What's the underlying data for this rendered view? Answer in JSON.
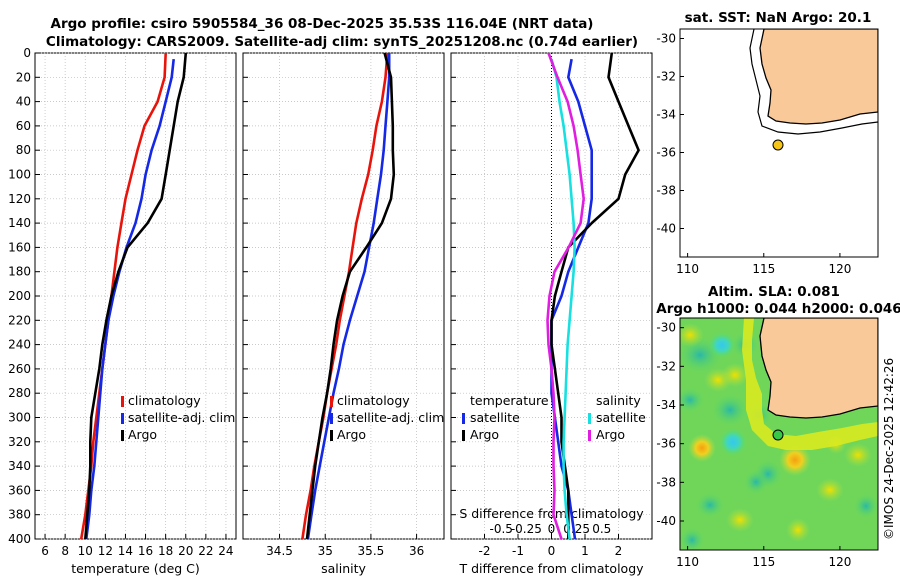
{
  "title": {
    "line1": "Argo profile: csiro 5905584_36 08-Dec-2025 35.53S 116.04E (NRT data)",
    "line2": "Climatology: CARS2009. Satellite-adj clim: synTS_20251208.nc (0.74d earlier)"
  },
  "sst_map": {
    "title": "sat. SST: NaN Argo: 20.1"
  },
  "sla_map": {
    "title_line1": "Altim. SLA: 0.081",
    "title_line2": "Argo h1000: 0.044 h2000: 0.046"
  },
  "stamp": "©IMOS 24-Dec-2025 12:42:26",
  "colors": {
    "climatology": "#e8140c",
    "satellite": "#1428e6",
    "argo": "#000000",
    "s_satellite": "#18e0e0",
    "s_climatology": "#e01ee0",
    "land": "#f9c99a"
  },
  "chart_data": [
    {
      "type": "line",
      "id": "temperature",
      "xlabel": "temperature (deg C)",
      "ylabel": "",
      "xlim": [
        5,
        25
      ],
      "ylim": [
        400,
        0
      ],
      "xticks": [
        "6",
        "8",
        "10",
        "12",
        "14",
        "16",
        "18",
        "20",
        "22",
        "24"
      ],
      "yticks": [
        "0",
        "20",
        "40",
        "60",
        "80",
        "100",
        "120",
        "140",
        "160",
        "180",
        "200",
        "220",
        "240",
        "260",
        "280",
        "300",
        "320",
        "340",
        "360",
        "380",
        "400"
      ],
      "legend": [
        "climatology",
        "satellite-adj. clim",
        "Argo"
      ],
      "series": [
        {
          "name": "climatology",
          "color": "#e8140c",
          "points": [
            [
              18.0,
              0
            ],
            [
              17.9,
              20
            ],
            [
              17.2,
              40
            ],
            [
              15.9,
              60
            ],
            [
              15.2,
              80
            ],
            [
              14.6,
              100
            ],
            [
              14.0,
              120
            ],
            [
              13.6,
              140
            ],
            [
              13.2,
              160
            ],
            [
              12.9,
              180
            ],
            [
              12.6,
              200
            ],
            [
              12.3,
              220
            ],
            [
              12.0,
              240
            ],
            [
              11.7,
              260
            ],
            [
              11.4,
              280
            ],
            [
              11.1,
              300
            ],
            [
              10.8,
              320
            ],
            [
              10.6,
              340
            ],
            [
              10.3,
              360
            ],
            [
              10.0,
              380
            ],
            [
              9.6,
              400
            ]
          ]
        },
        {
          "name": "satellite-adj. clim",
          "color": "#1428e6",
          "points": [
            [
              18.8,
              5
            ],
            [
              18.6,
              20
            ],
            [
              18.0,
              40
            ],
            [
              17.4,
              60
            ],
            [
              16.6,
              80
            ],
            [
              16.0,
              100
            ],
            [
              15.6,
              120
            ],
            [
              15.0,
              140
            ],
            [
              14.1,
              160
            ],
            [
              13.4,
              180
            ],
            [
              12.8,
              200
            ],
            [
              12.3,
              220
            ],
            [
              12.0,
              240
            ],
            [
              11.7,
              260
            ],
            [
              11.5,
              280
            ],
            [
              11.3,
              300
            ],
            [
              11.1,
              320
            ],
            [
              10.9,
              340
            ],
            [
              10.6,
              360
            ],
            [
              10.4,
              380
            ],
            [
              10.1,
              400
            ]
          ]
        },
        {
          "name": "Argo",
          "color": "#000000",
          "points": [
            [
              20.0,
              0
            ],
            [
              19.8,
              20
            ],
            [
              19.2,
              40
            ],
            [
              18.8,
              60
            ],
            [
              18.4,
              80
            ],
            [
              18.0,
              100
            ],
            [
              17.6,
              120
            ],
            [
              16.2,
              140
            ],
            [
              14.2,
              160
            ],
            [
              13.3,
              180
            ],
            [
              12.6,
              200
            ],
            [
              12.1,
              220
            ],
            [
              11.7,
              240
            ],
            [
              11.4,
              260
            ],
            [
              11.0,
              280
            ],
            [
              10.6,
              300
            ],
            [
              10.5,
              320
            ],
            [
              10.5,
              340
            ],
            [
              10.4,
              360
            ],
            [
              10.2,
              380
            ],
            [
              10.0,
              400
            ]
          ]
        }
      ]
    },
    {
      "type": "line",
      "id": "salinity",
      "xlabel": "salinity",
      "ylabel": "",
      "xlim": [
        34.1,
        36.3
      ],
      "ylim": [
        400,
        0
      ],
      "xticks": [
        "34.5",
        "35",
        "35.5",
        "36"
      ],
      "legend": [
        "climatology",
        "satellite-adj. clim",
        "Argo"
      ],
      "series": [
        {
          "name": "climatology",
          "color": "#e8140c",
          "points": [
            [
              35.68,
              0
            ],
            [
              35.66,
              20
            ],
            [
              35.62,
              40
            ],
            [
              35.56,
              60
            ],
            [
              35.52,
              80
            ],
            [
              35.47,
              100
            ],
            [
              35.4,
              120
            ],
            [
              35.34,
              140
            ],
            [
              35.3,
              160
            ],
            [
              35.26,
              180
            ],
            [
              35.21,
              200
            ],
            [
              35.16,
              220
            ],
            [
              35.12,
              240
            ],
            [
              35.07,
              260
            ],
            [
              35.02,
              280
            ],
            [
              34.98,
              300
            ],
            [
              34.93,
              320
            ],
            [
              34.88,
              340
            ],
            [
              34.84,
              360
            ],
            [
              34.79,
              380
            ],
            [
              34.75,
              400
            ]
          ]
        },
        {
          "name": "satellite-adj. clim",
          "color": "#1428e6",
          "points": [
            [
              35.7,
              0
            ],
            [
              35.7,
              20
            ],
            [
              35.68,
              40
            ],
            [
              35.66,
              60
            ],
            [
              35.64,
              80
            ],
            [
              35.61,
              100
            ],
            [
              35.57,
              120
            ],
            [
              35.53,
              140
            ],
            [
              35.48,
              160
            ],
            [
              35.43,
              180
            ],
            [
              35.35,
              200
            ],
            [
              35.27,
              220
            ],
            [
              35.2,
              240
            ],
            [
              35.15,
              260
            ],
            [
              35.09,
              280
            ],
            [
              35.04,
              300
            ],
            [
              34.99,
              320
            ],
            [
              34.94,
              340
            ],
            [
              34.89,
              360
            ],
            [
              34.85,
              380
            ],
            [
              34.81,
              400
            ]
          ]
        },
        {
          "name": "Argo",
          "color": "#000000",
          "points": [
            [
              35.65,
              0
            ],
            [
              35.72,
              20
            ],
            [
              35.73,
              40
            ],
            [
              35.74,
              60
            ],
            [
              35.74,
              80
            ],
            [
              35.75,
              100
            ],
            [
              35.72,
              120
            ],
            [
              35.62,
              140
            ],
            [
              35.45,
              160
            ],
            [
              35.27,
              180
            ],
            [
              35.19,
              200
            ],
            [
              35.13,
              220
            ],
            [
              35.09,
              240
            ],
            [
              35.06,
              260
            ],
            [
              35.02,
              280
            ],
            [
              34.97,
              300
            ],
            [
              34.93,
              320
            ],
            [
              34.89,
              340
            ],
            [
              34.86,
              360
            ],
            [
              34.83,
              380
            ],
            [
              34.8,
              400
            ]
          ]
        }
      ]
    },
    {
      "type": "line",
      "id": "differences",
      "xlabel": "T difference from climatology",
      "x2label": "S difference from climatology",
      "xlim": [
        -3,
        3
      ],
      "x2lim": [
        -1,
        1
      ],
      "ylim": [
        400,
        0
      ],
      "xticks": [
        "-2",
        "-1",
        "0",
        "1",
        "2"
      ],
      "x2ticks": [
        "-0.5",
        "-0.25",
        "0",
        "0.25",
        "0.5"
      ],
      "legend_left_title": "temperature",
      "legend_right_title": "salinity",
      "legend_left": [
        "satellite",
        "Argo"
      ],
      "legend_right": [
        "satellite",
        "Argo"
      ],
      "series": [
        {
          "name": "T satellite",
          "color": "#1428e6",
          "axis": "T",
          "points": [
            [
              0.6,
              5
            ],
            [
              0.5,
              20
            ],
            [
              0.8,
              40
            ],
            [
              1.0,
              60
            ],
            [
              1.2,
              80
            ],
            [
              1.2,
              100
            ],
            [
              1.2,
              120
            ],
            [
              1.1,
              140
            ],
            [
              0.8,
              160
            ],
            [
              0.5,
              180
            ],
            [
              0.3,
              200
            ],
            [
              0.0,
              220
            ],
            [
              0.0,
              240
            ],
            [
              0.0,
              260
            ],
            [
              0.0,
              280
            ],
            [
              0.1,
              300
            ],
            [
              0.2,
              320
            ],
            [
              0.3,
              340
            ],
            [
              0.5,
              360
            ],
            [
              0.6,
              380
            ],
            [
              0.7,
              400
            ]
          ]
        },
        {
          "name": "T Argo",
          "color": "#000000",
          "axis": "T",
          "points": [
            [
              1.8,
              0
            ],
            [
              1.7,
              20
            ],
            [
              2.0,
              40
            ],
            [
              2.3,
              60
            ],
            [
              2.6,
              80
            ],
            [
              2.2,
              100
            ],
            [
              2.0,
              120
            ],
            [
              1.2,
              140
            ],
            [
              0.5,
              160
            ],
            [
              0.3,
              180
            ],
            [
              0.1,
              200
            ],
            [
              0.0,
              220
            ],
            [
              0.0,
              240
            ],
            [
              0.1,
              260
            ],
            [
              0.2,
              280
            ],
            [
              0.3,
              300
            ],
            [
              0.3,
              320
            ],
            [
              0.4,
              340
            ],
            [
              0.5,
              360
            ],
            [
              0.5,
              380
            ],
            [
              0.5,
              400
            ]
          ]
        },
        {
          "name": "S satellite",
          "color": "#18e0e0",
          "axis": "S",
          "points": [
            [
              0.0,
              5
            ],
            [
              0.05,
              20
            ],
            [
              0.08,
              40
            ],
            [
              0.12,
              60
            ],
            [
              0.15,
              80
            ],
            [
              0.18,
              100
            ],
            [
              0.2,
              120
            ],
            [
              0.22,
              140
            ],
            [
              0.23,
              160
            ],
            [
              0.22,
              180
            ],
            [
              0.2,
              200
            ],
            [
              0.18,
              220
            ],
            [
              0.16,
              240
            ],
            [
              0.15,
              260
            ],
            [
              0.14,
              280
            ],
            [
              0.13,
              300
            ],
            [
              0.12,
              320
            ],
            [
              0.12,
              340
            ],
            [
              0.13,
              360
            ],
            [
              0.15,
              380
            ],
            [
              0.18,
              400
            ]
          ]
        },
        {
          "name": "S Argo",
          "color": "#e01ee0",
          "axis": "S",
          "points": [
            [
              -0.03,
              0
            ],
            [
              0.06,
              20
            ],
            [
              0.16,
              40
            ],
            [
              0.22,
              60
            ],
            [
              0.26,
              80
            ],
            [
              0.29,
              100
            ],
            [
              0.32,
              120
            ],
            [
              0.29,
              140
            ],
            [
              0.17,
              160
            ],
            [
              0.03,
              180
            ],
            [
              -0.02,
              200
            ],
            [
              -0.04,
              220
            ],
            [
              -0.03,
              240
            ],
            [
              0.0,
              260
            ],
            [
              0.02,
              280
            ],
            [
              0.03,
              300
            ],
            [
              0.02,
              320
            ],
            [
              0.02,
              340
            ],
            [
              0.03,
              360
            ],
            [
              0.02,
              380
            ],
            [
              0.1,
              400
            ]
          ]
        }
      ]
    }
  ],
  "maps": [
    {
      "id": "sst",
      "xticks": [
        "110",
        "115",
        "120"
      ],
      "yticks": [
        "-30",
        "-32",
        "-34",
        "-36",
        "-38",
        "-40"
      ],
      "lon_range": [
        109.5,
        122.5
      ],
      "lat_range": [
        -41.5,
        -29.5
      ],
      "argo_lon": 116.04,
      "argo_lat": -35.53
    },
    {
      "id": "sla",
      "xticks": [
        "110",
        "115",
        "120"
      ],
      "yticks": [
        "-30",
        "-32",
        "-34",
        "-36",
        "-38",
        "-40"
      ],
      "lon_range": [
        109.5,
        122.5
      ],
      "lat_range": [
        -41.5,
        -29.5
      ],
      "argo_lon": 116.04,
      "argo_lat": -35.53
    }
  ]
}
